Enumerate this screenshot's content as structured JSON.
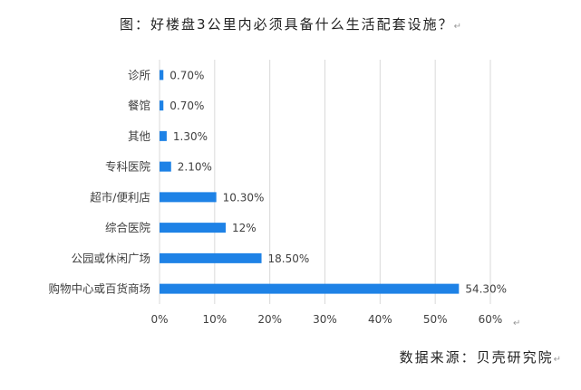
{
  "header": {
    "title": "图：好楼盘3公里内必须具备什么生活配套设施？",
    "return_mark": "↵"
  },
  "footer": {
    "source": "数据来源：贝壳研究院",
    "return_mark": "↵"
  },
  "axis_return_mark": "↵",
  "colors": {
    "bar": "#1e82e6",
    "grid": "#d9d9d9",
    "text": "#404040"
  },
  "chart_data": {
    "type": "bar",
    "orientation": "horizontal",
    "categories": [
      "诊所",
      "餐馆",
      "其他",
      "专科医院",
      "超市/便利店",
      "综合医院",
      "公园或休闲广场",
      "购物中心或百货商场"
    ],
    "values": [
      0.7,
      0.7,
      1.3,
      2.1,
      10.3,
      12,
      18.5,
      54.3
    ],
    "data_labels": [
      "0.70%",
      "0.70%",
      "1.30%",
      "2.10%",
      "10.30%",
      "12%",
      "18.50%",
      "54.30%"
    ],
    "x_ticks": [
      0,
      10,
      20,
      30,
      40,
      50,
      60
    ],
    "x_tick_labels": [
      "0%",
      "10%",
      "20%",
      "30%",
      "40%",
      "50%",
      "60%"
    ],
    "xlim": [
      0,
      60
    ],
    "grid": true,
    "legend": "none"
  }
}
